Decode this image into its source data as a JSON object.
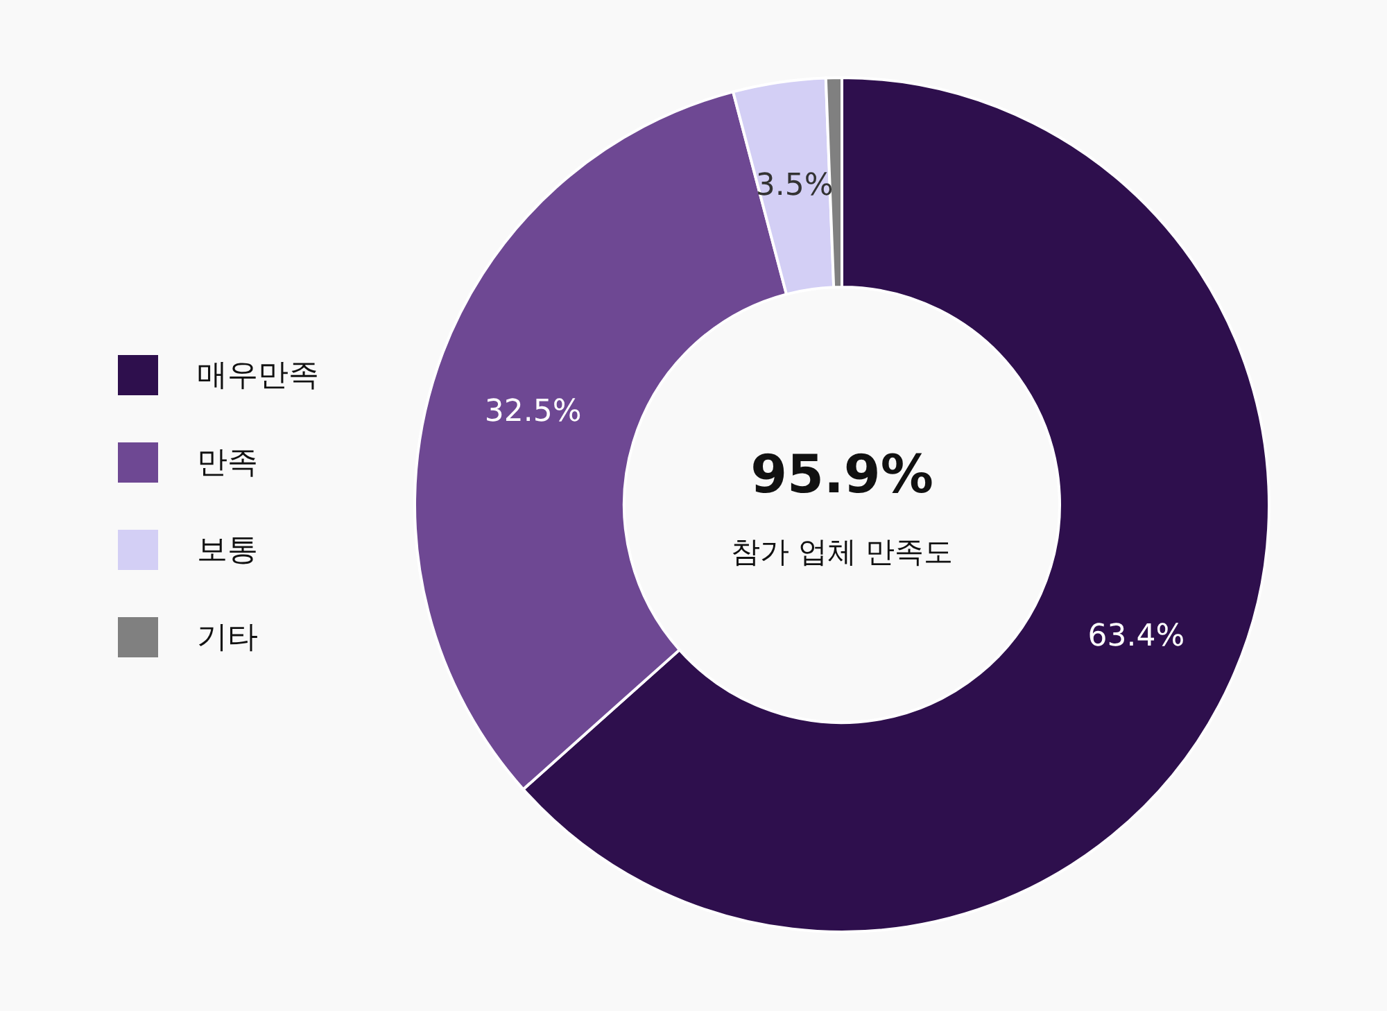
{
  "chart_data": {
    "type": "donut",
    "categories": [
      "매우만족",
      "만족",
      "보통",
      "기타"
    ],
    "values": [
      63.4,
      32.5,
      3.5,
      0.6
    ],
    "colors": [
      "#2e0f4d",
      "#6e4893",
      "#d3cff5",
      "#808080"
    ],
    "value_labels": [
      "63.4%",
      "32.5%",
      "3.5%",
      null
    ],
    "legend": "left",
    "annotations": [
      "95.9%",
      "참가 업체 만족도"
    ]
  }
}
